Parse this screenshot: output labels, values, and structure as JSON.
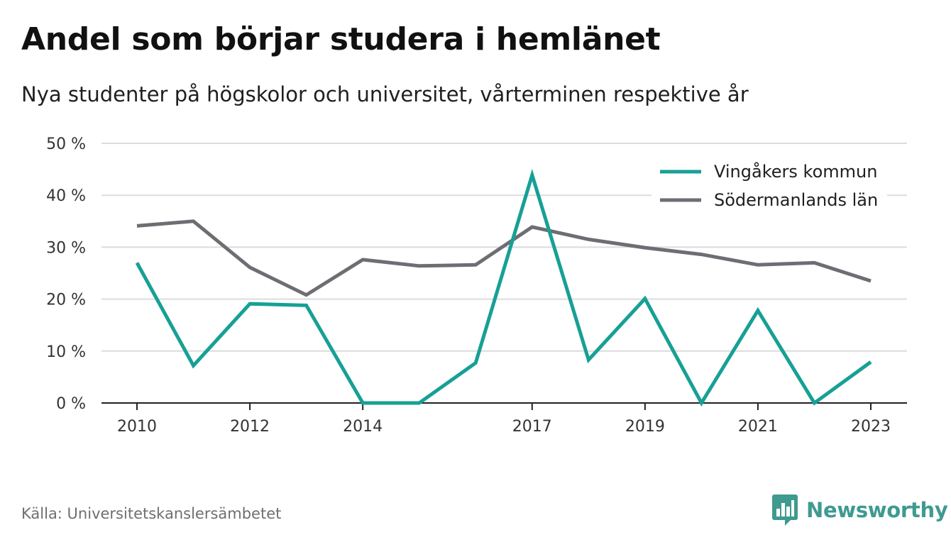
{
  "header": {
    "title": "Andel som börjar studera i hemlänet",
    "subtitle": "Nya studenter på högskolor och universitet, vårterminen respektive år"
  },
  "footer": {
    "source": "Källa: Universitetskanslersämbetet",
    "brand": "Newsworthy",
    "brand_icon": "bar-chart-speech-bubble-icon"
  },
  "colors": {
    "series_1": "#17a095",
    "series_2": "#6e6d73",
    "grid": "#dcdcdc",
    "axis": "#222222",
    "brand": "#3f9a90"
  },
  "chart_data": {
    "type": "line",
    "title": "Andel som börjar studera i hemlänet",
    "xlabel": "",
    "ylabel": "",
    "x": [
      2010,
      2011,
      2012,
      2013,
      2014,
      2015,
      2016,
      2017,
      2018,
      2019,
      2020,
      2021,
      2022,
      2023
    ],
    "xticks": [
      "2010",
      "2012",
      "2014",
      "2017",
      "2019",
      "2021",
      "2023"
    ],
    "ylim": [
      0,
      50
    ],
    "yticks": [
      "0 %",
      "10 %",
      "20 %",
      "30 %",
      "40 %",
      "50 %"
    ],
    "grid": true,
    "legend_position": "top-right",
    "series": [
      {
        "name": "Vingåkers kommun",
        "values": [
          27.0,
          7.2,
          19.1,
          18.8,
          0.0,
          0.0,
          7.7,
          43.9,
          8.3,
          20.1,
          0.0,
          17.8,
          0.0,
          7.9
        ]
      },
      {
        "name": "Södermanlands län",
        "values": [
          34.1,
          35.0,
          26.1,
          20.8,
          27.6,
          26.4,
          26.6,
          33.9,
          31.5,
          29.9,
          28.6,
          26.6,
          27.0,
          23.5
        ]
      }
    ]
  }
}
